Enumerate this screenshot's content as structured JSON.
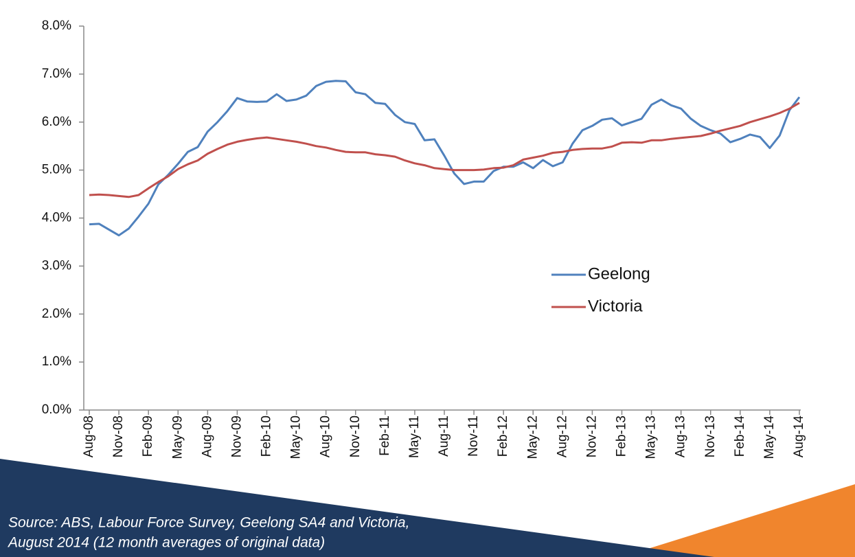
{
  "chart_data": {
    "type": "line",
    "categories": [
      "Aug-08",
      null,
      null,
      "Nov-08",
      null,
      null,
      "Feb-09",
      null,
      null,
      "May-09",
      null,
      null,
      "Aug-09",
      null,
      null,
      "Nov-09",
      null,
      null,
      "Feb-10",
      null,
      null,
      "May-10",
      null,
      null,
      "Aug-10",
      null,
      null,
      "Nov-10",
      null,
      null,
      "Feb-11",
      null,
      null,
      "May-11",
      null,
      null,
      "Aug-11",
      null,
      null,
      "Nov-11",
      null,
      null,
      "Feb-12",
      null,
      null,
      "May-12",
      null,
      null,
      "Aug-12",
      null,
      null,
      "Nov-12",
      null,
      null,
      "Feb-13",
      null,
      null,
      "May-13",
      null,
      null,
      "Aug-13",
      null,
      null,
      "Nov-13",
      null,
      null,
      "Feb-14",
      null,
      null,
      "May-14",
      null,
      null,
      "Aug-14"
    ],
    "series": [
      {
        "name": "Geelong",
        "color": "#4f81bd",
        "values": [
          3.87,
          3.88,
          3.76,
          3.64,
          3.78,
          4.03,
          4.3,
          4.7,
          4.9,
          5.13,
          5.38,
          5.48,
          5.8,
          6.0,
          6.23,
          6.5,
          6.43,
          6.42,
          6.43,
          6.58,
          6.44,
          6.47,
          6.55,
          6.75,
          6.84,
          6.86,
          6.85,
          6.62,
          6.58,
          6.4,
          6.38,
          6.15,
          6.0,
          5.96,
          5.62,
          5.64,
          5.3,
          4.93,
          4.71,
          4.76,
          4.76,
          4.98,
          5.07,
          5.07,
          5.16,
          5.04,
          5.21,
          5.08,
          5.16,
          5.55,
          5.83,
          5.92,
          6.05,
          6.08,
          5.93,
          6.0,
          6.07,
          6.36,
          6.47,
          6.35,
          6.28,
          6.07,
          5.92,
          5.83,
          5.76,
          5.58,
          5.65,
          5.74,
          5.69,
          5.46,
          5.72,
          6.25,
          6.52
        ]
      },
      {
        "name": "Victoria",
        "color": "#c0504d",
        "values": [
          4.48,
          4.49,
          4.48,
          4.46,
          4.44,
          4.48,
          4.62,
          4.75,
          4.87,
          5.02,
          5.12,
          5.2,
          5.34,
          5.44,
          5.53,
          5.59,
          5.63,
          5.66,
          5.68,
          5.65,
          5.62,
          5.59,
          5.55,
          5.5,
          5.47,
          5.42,
          5.38,
          5.37,
          5.37,
          5.33,
          5.31,
          5.28,
          5.2,
          5.14,
          5.1,
          5.04,
          5.02,
          5.0,
          5.0,
          5.0,
          5.01,
          5.04,
          5.05,
          5.1,
          5.22,
          5.26,
          5.3,
          5.36,
          5.38,
          5.42,
          5.44,
          5.45,
          5.45,
          5.49,
          5.57,
          5.58,
          5.57,
          5.62,
          5.62,
          5.65,
          5.67,
          5.69,
          5.71,
          5.76,
          5.82,
          5.87,
          5.92,
          6.0,
          6.06,
          6.12,
          6.19,
          6.28,
          6.4
        ]
      }
    ],
    "ylim": [
      0,
      8
    ],
    "yticks": [
      {
        "value": 0,
        "label": "0.0%"
      },
      {
        "value": 1,
        "label": "1.0%"
      },
      {
        "value": 2,
        "label": "2.0%"
      },
      {
        "value": 3,
        "label": "3.0%"
      },
      {
        "value": 4,
        "label": "4.0%"
      },
      {
        "value": 5,
        "label": "5.0%"
      },
      {
        "value": 6,
        "label": "6.0%"
      },
      {
        "value": 7,
        "label": "7.0%"
      },
      {
        "value": 8,
        "label": "8.0%"
      }
    ],
    "grid": false,
    "source": [
      "Source: ABS, Labour Force Survey, Geelong SA4 and Victoria,",
      "August 2014 (12 month averages of original data)"
    ]
  }
}
